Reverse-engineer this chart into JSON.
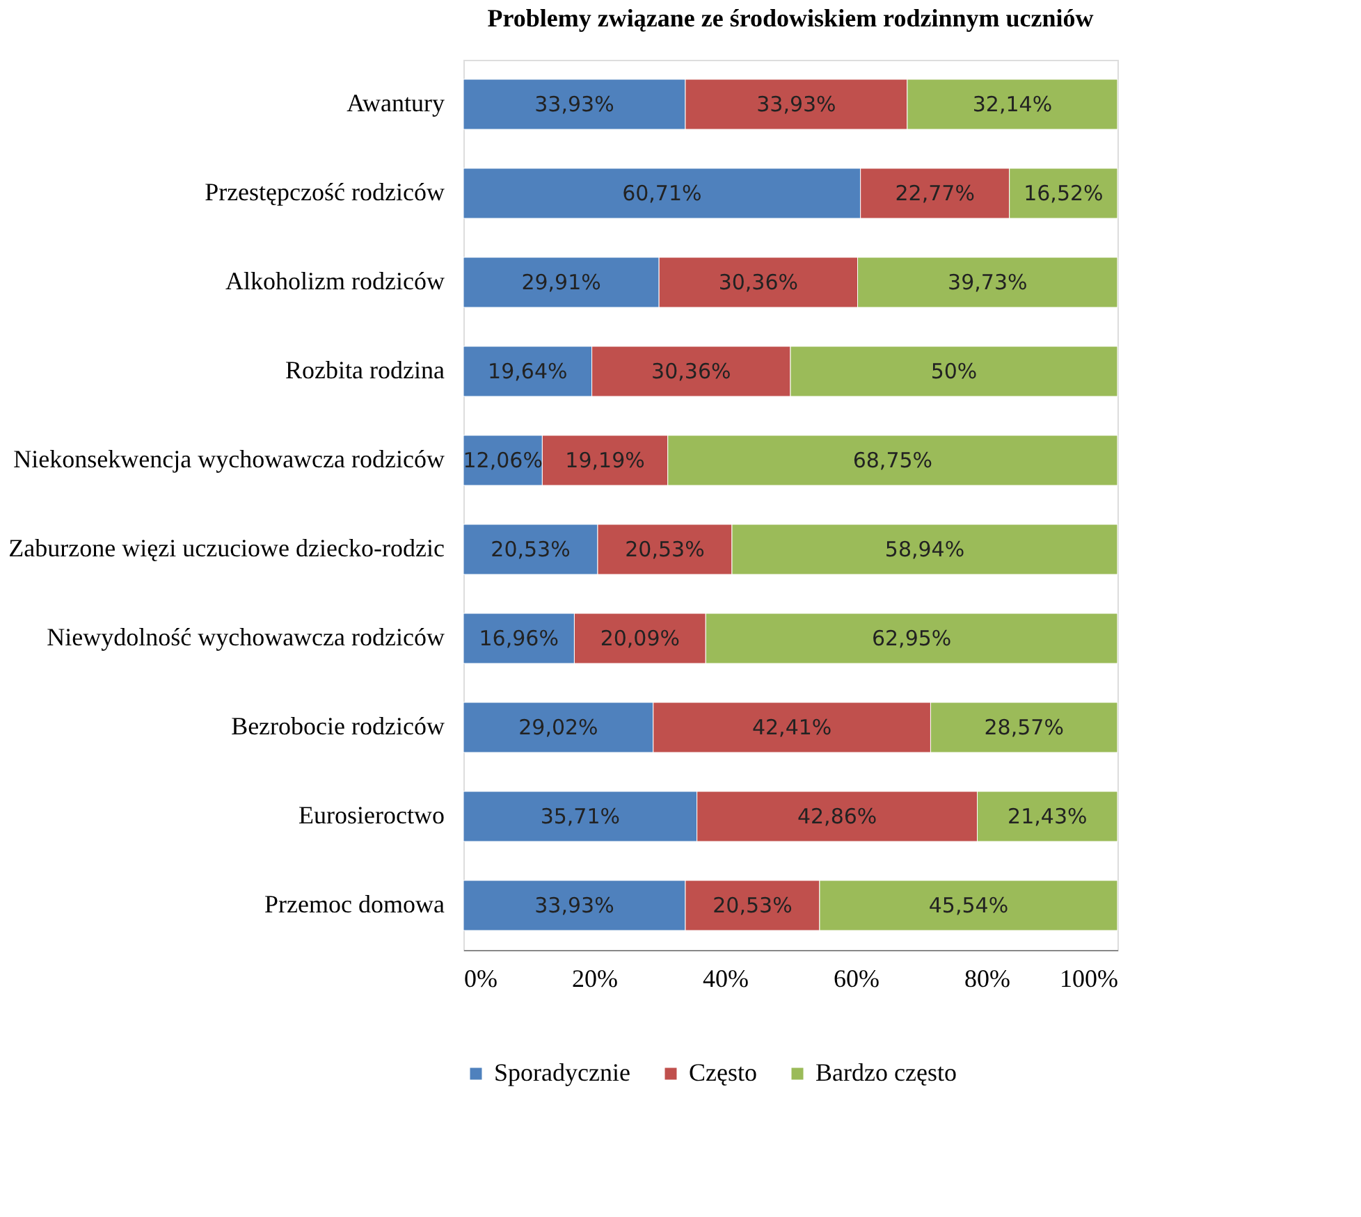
{
  "chart_data": {
    "type": "bar",
    "orientation": "horizontal",
    "stacked": true,
    "title": "Problemy związane ze środowiskiem rodzinnym uczniów",
    "categories": [
      "Awantury",
      "Przestępczość rodziców",
      "Alkoholizm rodziców",
      "Rozbita rodzina",
      "Niekonsekwencja wychowawcza rodziców",
      "Zaburzone więzi uczuciowe dziecko-rodzic",
      "Niewydolność wychowawcza rodziców",
      "Bezrobocie rodziców",
      "Eurosieroctwo",
      "Przemoc domowa"
    ],
    "series": [
      {
        "name": "Sporadycznie",
        "color": "#4f81bd",
        "values": [
          33.93,
          60.71,
          29.91,
          19.64,
          12.06,
          20.53,
          16.96,
          29.02,
          35.71,
          33.93
        ],
        "value_labels": [
          "33,93%",
          "60,71%",
          "29,91%",
          "19,64%",
          "12,06%",
          "20,53%",
          "16,96%",
          "29,02%",
          "35,71%",
          "33,93%"
        ]
      },
      {
        "name": "Często",
        "color": "#c0504d",
        "values": [
          33.93,
          22.77,
          30.36,
          30.36,
          19.19,
          20.53,
          20.09,
          42.41,
          42.86,
          20.53
        ],
        "value_labels": [
          "33,93%",
          "22,77%",
          "30,36%",
          "30,36%",
          "19,19%",
          "20,53%",
          "20,09%",
          "42,41%",
          "42,86%",
          "20,53%"
        ]
      },
      {
        "name": "Bardzo często",
        "color": "#9bbb59",
        "values": [
          32.14,
          16.52,
          39.73,
          50,
          68.75,
          58.94,
          62.95,
          28.57,
          21.43,
          45.54
        ],
        "value_labels": [
          "32,14%",
          "16,52%",
          "39,73%",
          "50%",
          "68,75%",
          "58,94%",
          "62,95%",
          "28,57%",
          "21,43%",
          "45,54%"
        ]
      }
    ],
    "xlim": [
      0,
      100
    ],
    "xticks": [
      {
        "value": 0,
        "label": "0%"
      },
      {
        "value": 20,
        "label": "20%"
      },
      {
        "value": 40,
        "label": "40%"
      },
      {
        "value": 60,
        "label": "60%"
      },
      {
        "value": 80,
        "label": "80%"
      },
      {
        "value": 100,
        "label": "100%"
      }
    ],
    "grid": false,
    "legend": "bottom"
  }
}
